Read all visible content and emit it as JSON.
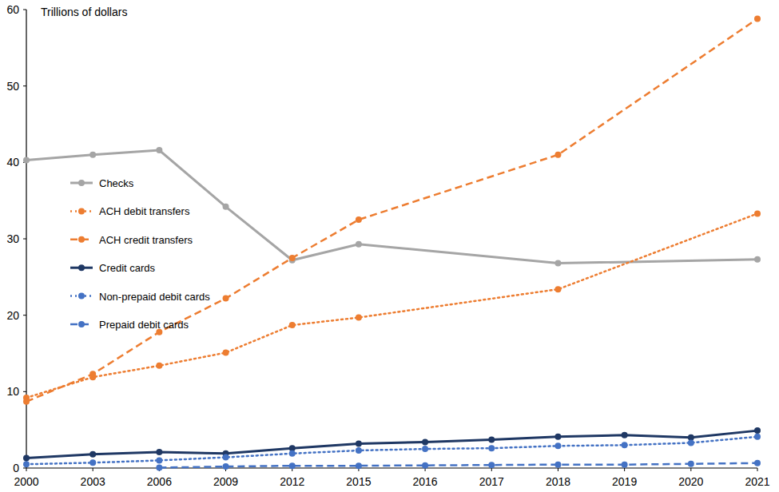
{
  "chart_data": {
    "type": "line",
    "y_label": "Trillions of dollars",
    "categories": [
      "2000",
      "2003",
      "2006",
      "2009",
      "2012",
      "2015",
      "2016",
      "2017",
      "2018",
      "2019",
      "2020",
      "2021"
    ],
    "ylim": [
      0,
      60
    ],
    "yticks": [
      0,
      10,
      20,
      30,
      40,
      50,
      60
    ],
    "grid": false,
    "legend": "left",
    "series": [
      {
        "name": "Checks",
        "color": "#a5a5a5",
        "line_style": "solid",
        "marker": "circle",
        "x": [
          "2000",
          "2003",
          "2006",
          "2009",
          "2012",
          "2015",
          "2018",
          "2021"
        ],
        "values": [
          40.3,
          41.0,
          41.6,
          34.2,
          27.2,
          29.3,
          26.8,
          27.3
        ]
      },
      {
        "name": "ACH debit transfers",
        "color": "#ed7d31",
        "line_style": "dotted",
        "marker": "circle",
        "x": [
          "2000",
          "2003",
          "2006",
          "2009",
          "2012",
          "2015",
          "2018",
          "2021"
        ],
        "values": [
          9.2,
          11.9,
          13.4,
          15.1,
          18.7,
          19.7,
          23.4,
          33.3
        ]
      },
      {
        "name": "ACH credit transfers",
        "color": "#ed7d31",
        "line_style": "dashed",
        "marker": "circle",
        "x": [
          "2000",
          "2003",
          "2006",
          "2009",
          "2012",
          "2015",
          "2018",
          "2021"
        ],
        "values": [
          8.7,
          12.3,
          17.8,
          22.2,
          27.5,
          32.5,
          41.0,
          58.8
        ]
      },
      {
        "name": "Credit cards",
        "color": "#1f3864",
        "line_style": "solid",
        "marker": "circle",
        "x": [
          "2000",
          "2003",
          "2006",
          "2009",
          "2012",
          "2015",
          "2016",
          "2017",
          "2018",
          "2019",
          "2020",
          "2021"
        ],
        "values": [
          1.3,
          1.8,
          2.1,
          1.9,
          2.6,
          3.2,
          3.4,
          3.7,
          4.1,
          4.3,
          4.0,
          4.9
        ]
      },
      {
        "name": "Non-prepaid debit cards",
        "color": "#4472c4",
        "line_style": "dotted",
        "marker": "circle",
        "x": [
          "2000",
          "2003",
          "2006",
          "2009",
          "2012",
          "2015",
          "2016",
          "2017",
          "2018",
          "2019",
          "2020",
          "2021"
        ],
        "values": [
          0.5,
          0.7,
          1.0,
          1.4,
          1.9,
          2.3,
          2.5,
          2.6,
          2.9,
          3.0,
          3.3,
          4.1
        ]
      },
      {
        "name": "Prepaid debit cards",
        "color": "#4472c4",
        "line_style": "dashed",
        "marker": "circle",
        "x": [
          "2006",
          "2009",
          "2012",
          "2015",
          "2016",
          "2017",
          "2018",
          "2019",
          "2020",
          "2021"
        ],
        "values": [
          0.05,
          0.2,
          0.3,
          0.3,
          0.35,
          0.4,
          0.45,
          0.45,
          0.55,
          0.65
        ]
      }
    ]
  }
}
